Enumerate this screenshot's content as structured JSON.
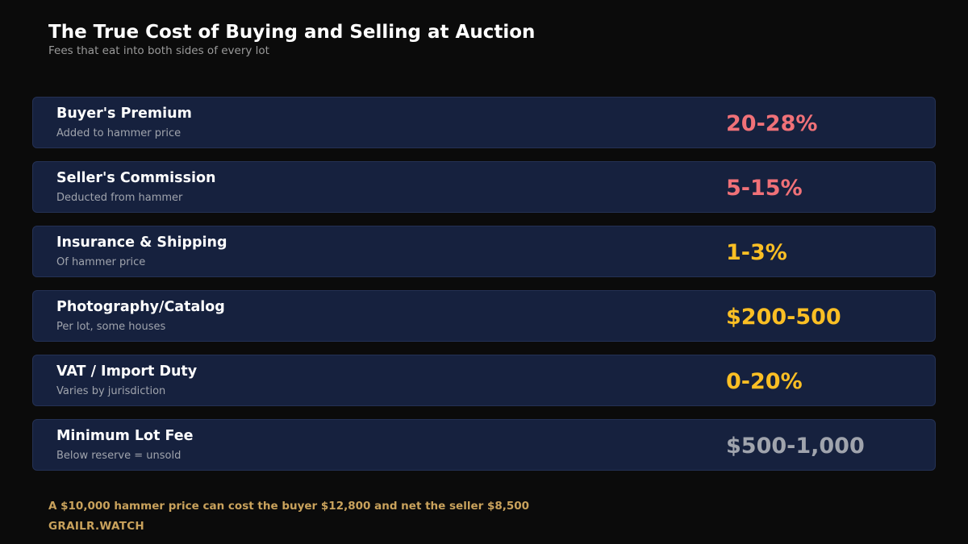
{
  "header": {
    "title": "The True Cost of Buying and Selling at Auction",
    "subtitle": "Fees that eat into both sides of every lot"
  },
  "fees": [
    {
      "label": "Buyer's Premium",
      "note": "Added to hammer price",
      "value": "20-28%",
      "color": "#f07178"
    },
    {
      "label": "Seller's Commission",
      "note": "Deducted from hammer",
      "value": "5-15%",
      "color": "#f07178"
    },
    {
      "label": "Insurance & Shipping",
      "note": "Of hammer price",
      "value": "1-3%",
      "color": "#fbbf24"
    },
    {
      "label": "Photography/Catalog",
      "note": "Per lot, some houses",
      "value": "$200-500",
      "color": "#fbbf24"
    },
    {
      "label": "VAT / Import Duty",
      "note": "Varies by jurisdiction",
      "value": "0-20%",
      "color": "#fbbf24"
    },
    {
      "label": "Minimum Lot Fee",
      "note": "Below reserve = unsold",
      "value": "$500-1,000",
      "color": "#a0a4ad"
    }
  ],
  "footer": {
    "note": "A $10,000 hammer price can cost the buyer $12,800 and net the seller $8,500",
    "brand": "GRAILR.WATCH"
  },
  "colors": {
    "background": "#0b0b0b",
    "card": "#16213e",
    "accent_gold": "#c9a25c"
  }
}
